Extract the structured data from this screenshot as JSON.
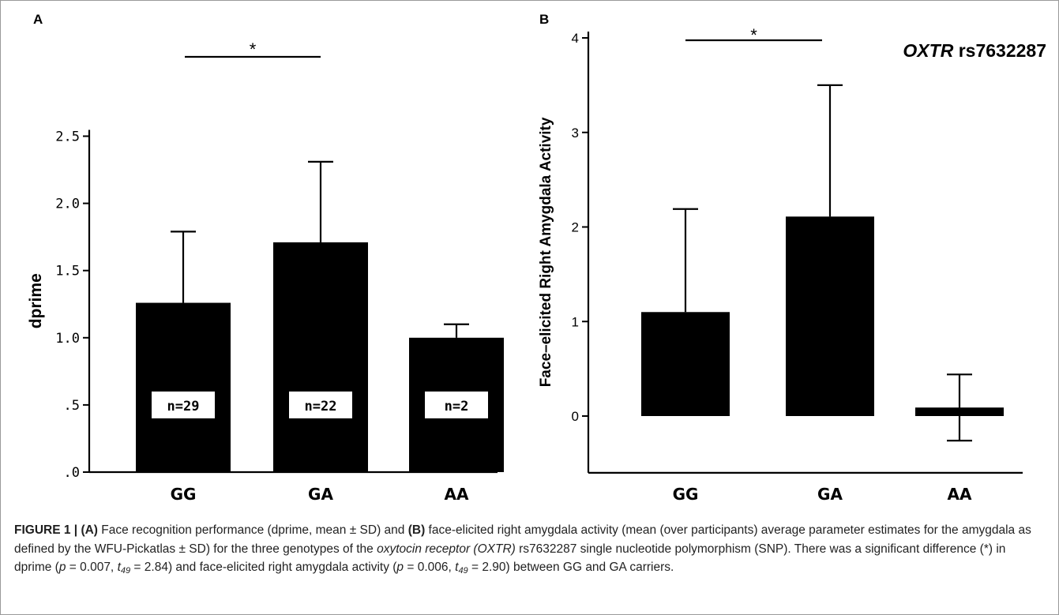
{
  "figure": {
    "caption": {
      "heading": "FIGURE 1 | ",
      "a_label": "(A)",
      "t1": " Face recognition performance (dprime, mean ± SD) and ",
      "b_label": "(B)",
      "t2": " face-elicited right amygdala activity (mean (over participants) average parameter estimates for the amygdala as defined by the WFU-Pickatlas ± SD) for the three genotypes of the ",
      "gene_italic": "oxytocin receptor (OXTR)",
      "t3": " rs7632287 single nucleotide polymorphism (SNP). There was a significant difference (*) in dprime (",
      "p1_var": "p",
      "p1_rest": " = 0.007, ",
      "t1_var": "t",
      "df1": "49",
      "t1_rest": " = 2.84) and face-elicited right amygdala activity (",
      "p2_var": "p",
      "p2_rest": " = 0.006, ",
      "t2_var": "t",
      "df2": "49",
      "t2_rest": " = 2.90) between GG and GA carriers."
    }
  },
  "chart_data": [
    {
      "panel": "A",
      "type": "bar",
      "categories": [
        "GG",
        "GA",
        "AA"
      ],
      "values": [
        1.26,
        1.71,
        1.0
      ],
      "error_upper": [
        1.79,
        2.31,
        1.1
      ],
      "error_lower": [
        null,
        null,
        null
      ],
      "labels": [
        "n=29",
        "n=22",
        "n=2"
      ],
      "ylabel": "dprime",
      "yticks": [
        0,
        0.5,
        1.0,
        1.5,
        2.0,
        2.5
      ],
      "ytick_labels": [
        ".0",
        ".5",
        "1.0",
        "1.5",
        "2.0",
        "2.5"
      ],
      "ylim": [
        0,
        2.5
      ],
      "significance": {
        "from": "GG",
        "to": "GA",
        "mark": "*"
      },
      "bar_color": "#000000"
    },
    {
      "panel": "B",
      "type": "bar",
      "title": "OXTR rs7632287",
      "categories": [
        "GG",
        "GA",
        "AA"
      ],
      "values": [
        1.1,
        2.11,
        0.09
      ],
      "error_upper": [
        2.19,
        3.5,
        0.44
      ],
      "error_lower": [
        null,
        null,
        -0.26
      ],
      "ylabel": "Face–elicited Right Amygdala Activity",
      "yticks": [
        0,
        1,
        2,
        3,
        4
      ],
      "ytick_labels": [
        "0",
        "1",
        "2",
        "3",
        "4"
      ],
      "ylim": [
        -0.6,
        4.0
      ],
      "significance": {
        "from": "GG",
        "to": "GA",
        "mark": "*"
      },
      "bar_color": "#000000"
    }
  ]
}
